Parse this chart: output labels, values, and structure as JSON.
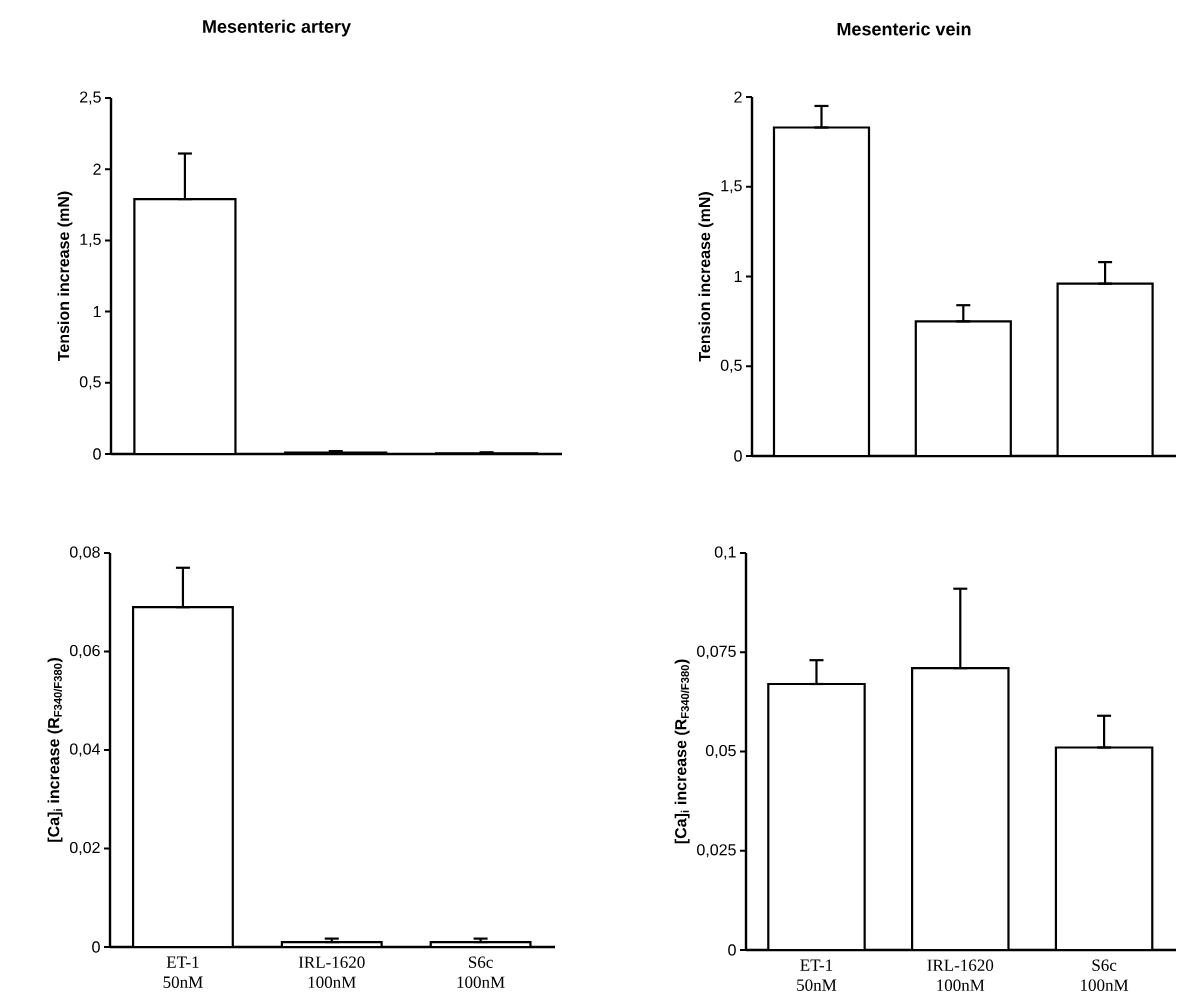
{
  "chart_data": [
    {
      "type": "bar",
      "title": "Mesenteric artery",
      "ylabel": "Tension increase (mN)",
      "categories": [
        null,
        null,
        null
      ],
      "values": [
        1.79,
        0.01,
        0.005
      ],
      "errors": [
        [
          1.79,
          2.11
        ],
        [
          0.01,
          0.02
        ],
        [
          0.005,
          0.012
        ]
      ],
      "color": "#ffffff",
      "ylim": [
        0,
        2.5
      ],
      "yticks": [
        0,
        {
          "value": 0.5,
          "label": "0,5"
        },
        1,
        {
          "value": 1.5,
          "label": "1,5"
        },
        2,
        {
          "value": 2.5,
          "label": "2,5"
        }
      ]
    },
    {
      "type": "bar",
      "title": "Mesenteric vein",
      "ylabel": "Tension increase (mN)",
      "categories": [
        null,
        null,
        null
      ],
      "values": [
        1.83,
        0.75,
        0.96
      ],
      "errors": [
        [
          1.83,
          1.95
        ],
        [
          0.75,
          0.84
        ],
        [
          0.96,
          1.08
        ]
      ],
      "color": "#ffffff",
      "ylim": [
        0,
        2
      ],
      "yticks": [
        0,
        {
          "value": 0.5,
          "label": "0,5"
        },
        1,
        {
          "value": 1.5,
          "label": "1,5"
        },
        2
      ]
    },
    {
      "type": "bar",
      "ylabel": "[Ca]$_{i}$ increase (R$_{F340/F380}$)",
      "categories": [
        "ET-1 50nM",
        "IRL-1620 100nM",
        "S6c 100nM"
      ],
      "values": [
        0.069,
        0.001,
        0.001
      ],
      "errors": [
        [
          0.069,
          0.077
        ],
        [
          0.001,
          0.0017
        ],
        [
          0.001,
          0.0017
        ]
      ],
      "color": "#ffffff",
      "ylim": [
        0,
        0.08
      ],
      "yticks": [
        0,
        {
          "value": 0.02,
          "label": "0,02"
        },
        {
          "value": 0.04,
          "label": "0,04"
        },
        {
          "value": 0.06,
          "label": "0,06"
        },
        {
          "value": 0.08,
          "label": "0,08"
        }
      ]
    },
    {
      "type": "bar",
      "ylabel": "[Ca]$_{i}$ increase (R$_{F340/F380}$)",
      "categories": [
        "ET-1 50nM",
        "IRL-1620 100nM",
        "S6c 100nM"
      ],
      "values": [
        0.067,
        0.071,
        0.051
      ],
      "errors": [
        [
          0.067,
          0.073
        ],
        [
          0.071,
          0.091
        ],
        [
          0.051,
          0.059
        ]
      ],
      "color": "#ffffff",
      "ylim": [
        0,
        0.1
      ],
      "yticks": [
        0,
        {
          "value": 0.025,
          "label": "0,025"
        },
        {
          "value": 0.05,
          "label": "0,05"
        },
        {
          "value": 0.075,
          "label": "0,075"
        },
        {
          "value": 0.1,
          "label": "0,1"
        }
      ]
    }
  ]
}
